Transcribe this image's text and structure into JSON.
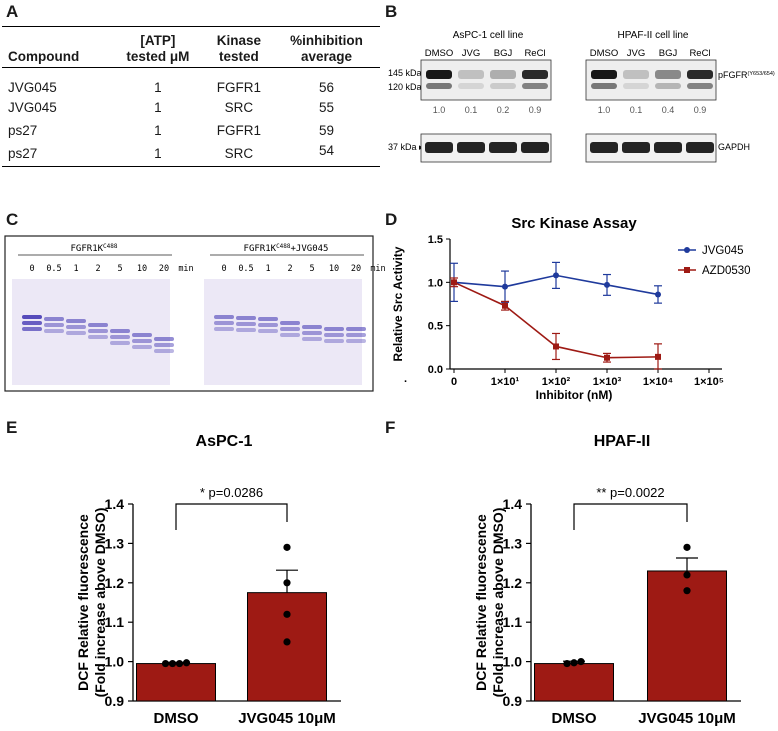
{
  "panels": {
    "a": "A",
    "b": "B",
    "c": "C",
    "d": "D",
    "e": "E",
    "f": "F"
  },
  "table": {
    "headers": [
      "Compound",
      "[ATP] tested μM",
      "Kinase tested",
      "%inhibition average"
    ],
    "header_lines": [
      [
        "Compound"
      ],
      [
        "[ATP]",
        "tested μM"
      ],
      [
        "Kinase",
        "tested"
      ],
      [
        "%inhibition",
        "average"
      ]
    ],
    "rows": [
      [
        "JVG045",
        "1",
        "FGFR1",
        "56"
      ],
      [
        "JVG045",
        "1",
        "SRC",
        "55"
      ],
      [
        "ps27",
        "1",
        "FGFR1",
        "59"
      ],
      [
        "ps27",
        "1",
        "SRC",
        "54"
      ]
    ]
  },
  "western": {
    "cell_lines": [
      "AsPC-1 cell line",
      "HPAF-II cell line"
    ],
    "lanes": [
      "DMSO",
      "JVG",
      "BGJ",
      "ReCl"
    ],
    "mw_markers": [
      "145 kDa",
      "120 kDa",
      "37 kDa"
    ],
    "targets": [
      "pFGFR",
      "(Y653/654)",
      "GAPDH"
    ],
    "quant_aspc1": [
      "1.0",
      "0.1",
      "0.2",
      "0.9"
    ],
    "quant_hpaf": [
      "1.0",
      "0.1",
      "0.4",
      "0.9"
    ],
    "band_intensity_aspc1": [
      1.0,
      0.1,
      0.2,
      0.9
    ],
    "band_intensity_hpaf": [
      1.0,
      0.1,
      0.4,
      0.9
    ]
  },
  "gel": {
    "left_label": "FGFR1K",
    "left_sup": "C488",
    "right_label": "FGFR1K",
    "right_sup": "C488",
    "right_suffix": "+JVG045",
    "timepoints": [
      "0",
      "0.5",
      "1",
      "2",
      "5",
      "10",
      "20"
    ],
    "unit": "min"
  },
  "chart_data": [
    {
      "type": "line",
      "title": "Src Kinase Assay",
      "xlabel": "Inhibitor (nM)",
      "ylabel": "Relative Src Activity",
      "x_scale": "log",
      "x_ticks": [
        "0",
        "1×10¹",
        "1×10²",
        "1×10³",
        "1×10⁴",
        "1×10⁵"
      ],
      "y_ticks": [
        "0.0",
        "0.5",
        "1.0",
        "1.5"
      ],
      "ylim": [
        0,
        1.5
      ],
      "x_axis_break_label": "·",
      "legend_position": "top-right",
      "series": [
        {
          "name": "JVG045",
          "color": "#1f3a9c",
          "marker": "circle",
          "x": [
            0,
            10,
            100,
            1000,
            10000
          ],
          "y": [
            1.0,
            0.95,
            1.08,
            0.97,
            0.86
          ],
          "err": [
            0.22,
            0.18,
            0.15,
            0.12,
            0.1
          ]
        },
        {
          "name": "AZD0530",
          "color": "#9e1a14",
          "marker": "square",
          "x": [
            0,
            10,
            100,
            1000,
            10000
          ],
          "y": [
            1.0,
            0.73,
            0.26,
            0.13,
            0.14
          ],
          "err": [
            0.05,
            0.05,
            0.15,
            0.05,
            0.15
          ]
        }
      ]
    },
    {
      "type": "bar",
      "title": "AsPC-1",
      "ylabel_lines": [
        "DCF Relative fluorescence",
        "(Fold increase above DMSO)"
      ],
      "categories": [
        "DMSO",
        "JVG045 10μM"
      ],
      "values": [
        0.995,
        1.175
      ],
      "sem": [
        0.003,
        0.057
      ],
      "points": [
        [
          0.995,
          0.995,
          0.995,
          0.997
        ],
        [
          1.29,
          1.2,
          1.12,
          1.05
        ]
      ],
      "ylim": [
        0.9,
        1.4
      ],
      "y_ticks": [
        "0.9",
        "1.0",
        "1.1",
        "1.2",
        "1.3",
        "1.4"
      ],
      "annotation": "* p=0.0286",
      "color": "#9e1a14"
    },
    {
      "type": "bar",
      "title": "HPAF-II",
      "ylabel_lines": [
        "DCF Relative fluorescence",
        "(Fold increase above DMSO)"
      ],
      "categories": [
        "DMSO",
        "JVG045 10μM"
      ],
      "values": [
        0.995,
        1.23
      ],
      "sem": [
        0.006,
        0.033
      ],
      "points": [
        [
          0.995,
          0.997,
          1.0
        ],
        [
          1.29,
          1.22,
          1.18
        ]
      ],
      "ylim": [
        0.9,
        1.4
      ],
      "y_ticks": [
        "0.9",
        "1.0",
        "1.1",
        "1.2",
        "1.3",
        "1.4"
      ],
      "annotation": "** p=0.0022",
      "color": "#9e1a14"
    }
  ]
}
